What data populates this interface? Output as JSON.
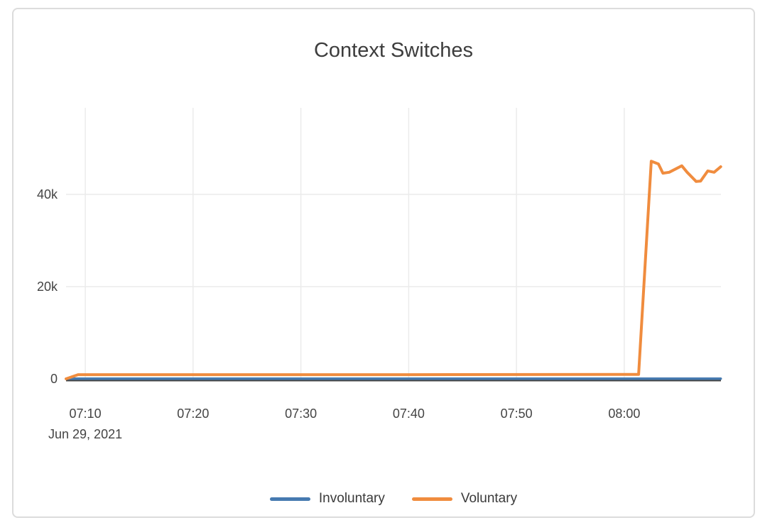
{
  "chart_data": {
    "type": "line",
    "title": "Context Switches",
    "x_axis": {
      "date_label": "Jun 29, 2021",
      "start": "07:08:13",
      "end": "08:08:58",
      "ticks": [
        "07:10",
        "07:20",
        "07:30",
        "07:40",
        "07:50",
        "08:00"
      ],
      "tick_interval": "10 min"
    },
    "y_axis": {
      "min": 0,
      "max": 58800,
      "ticks": [
        {
          "value": 0,
          "label": "0"
        },
        {
          "value": 20000,
          "label": "20k"
        },
        {
          "value": 40000,
          "label": "40k"
        }
      ]
    },
    "grid": true,
    "legend_position": "bottom-center",
    "series": [
      {
        "name": "Involuntary",
        "color": "#467ab0",
        "width": 3.5,
        "points": [
          [
            "07:08:13",
            50
          ],
          [
            "07:20:00",
            50
          ],
          [
            "07:40:00",
            50
          ],
          [
            "08:00:00",
            50
          ],
          [
            "08:08:57",
            50
          ]
        ]
      },
      {
        "name": "Voluntary",
        "color": "#f08c3e",
        "width": 4,
        "points": [
          [
            "07:08:13",
            0
          ],
          [
            "07:09:20",
            900
          ],
          [
            "07:20:00",
            900
          ],
          [
            "07:40:00",
            900
          ],
          [
            "08:00:00",
            950
          ],
          [
            "08:01:20",
            950
          ],
          [
            "08:02:30",
            47200
          ],
          [
            "08:03:10",
            46600
          ],
          [
            "08:03:35",
            44600
          ],
          [
            "08:04:10",
            44800
          ],
          [
            "08:05:20",
            46200
          ],
          [
            "08:05:50",
            44800
          ],
          [
            "08:06:40",
            42800
          ],
          [
            "08:07:05",
            42900
          ],
          [
            "08:07:45",
            45100
          ],
          [
            "08:08:20",
            44800
          ],
          [
            "08:08:57",
            46000
          ]
        ]
      }
    ]
  },
  "colors": {
    "grid": "#ebebeb",
    "zeroline": "#444444",
    "tick_text": "#444444",
    "title_text": "#3d3d3d",
    "card_border": "#dcdcdc",
    "background": "#ffffff"
  }
}
